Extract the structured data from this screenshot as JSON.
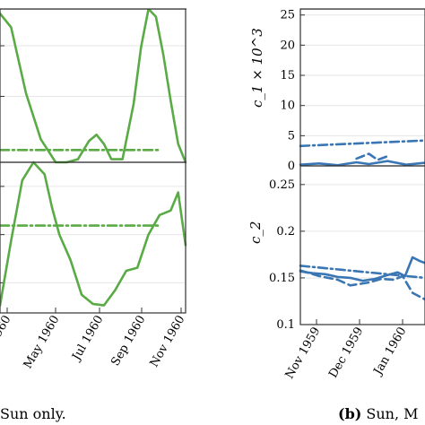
{
  "captions": {
    "left": "Sun only.",
    "right_bold": "(b)",
    "right_text": " Sun, M"
  },
  "chart_data": [
    {
      "panel": "left-top",
      "type": "line",
      "color": "#5aab46",
      "ylim": [
        0,
        1
      ],
      "grid": true,
      "series": [
        {
          "style": "solid",
          "x": [
            0.0,
            0.06,
            0.14,
            0.22,
            0.3,
            0.36,
            0.42,
            0.48,
            0.52,
            0.56,
            0.6,
            0.66,
            0.72,
            0.76,
            0.8,
            0.84,
            0.88,
            0.92,
            0.96,
            1.0
          ],
          "y": [
            0.97,
            0.88,
            0.45,
            0.15,
            0.0,
            0.0,
            0.02,
            0.14,
            0.18,
            0.12,
            0.02,
            0.02,
            0.38,
            0.75,
            1.0,
            0.95,
            0.7,
            0.4,
            0.12,
            0.0
          ]
        },
        {
          "style": "dashdot",
          "x": [
            0.0,
            0.86
          ],
          "y": [
            0.08,
            0.08
          ]
        }
      ]
    },
    {
      "panel": "left-bottom",
      "type": "line",
      "color": "#5aab46",
      "ylim": [
        0,
        1
      ],
      "grid": true,
      "series": [
        {
          "style": "solid",
          "x": [
            0.0,
            0.06,
            0.12,
            0.18,
            0.24,
            0.28,
            0.32,
            0.38,
            0.44,
            0.5,
            0.56,
            0.62,
            0.68,
            0.74,
            0.8,
            0.86,
            0.92,
            0.96,
            1.0
          ],
          "y": [
            0.05,
            0.48,
            0.88,
            1.0,
            0.92,
            0.7,
            0.52,
            0.35,
            0.12,
            0.06,
            0.05,
            0.15,
            0.28,
            0.3,
            0.52,
            0.65,
            0.68,
            0.8,
            0.45
          ]
        },
        {
          "style": "dashdot",
          "x": [
            0.0,
            0.85
          ],
          "y": [
            0.58,
            0.58
          ]
        }
      ]
    },
    {
      "panel": "left-x-axis",
      "type": "line",
      "tick_labels": [
        "960",
        "May 1960",
        "Jul 1960",
        "Sep 1960",
        "Nov 1960"
      ]
    },
    {
      "panel": "right-top",
      "type": "line",
      "color": "#3a76b4",
      "ylabel": "c_1 × 10^3",
      "ylim": [
        0,
        26
      ],
      "yticks": [
        "0",
        "5",
        "10",
        "15",
        "20",
        "25"
      ],
      "grid": true,
      "series": [
        {
          "style": "solid",
          "x": [
            0.0,
            0.15,
            0.3,
            0.45,
            0.55,
            0.7,
            0.85,
            1.0
          ],
          "y": [
            0.2,
            0.4,
            0.1,
            0.6,
            0.3,
            0.8,
            0.2,
            0.5
          ]
        },
        {
          "style": "dashed",
          "x": [
            0.45,
            0.55,
            0.62,
            0.7
          ],
          "y": [
            1.2,
            2.0,
            1.0,
            1.6
          ]
        },
        {
          "style": "dashdot",
          "x": [
            0.0,
            1.0
          ],
          "y": [
            3.3,
            4.2
          ]
        }
      ]
    },
    {
      "panel": "right-bottom",
      "type": "line",
      "color": "#3a76b4",
      "ylabel": "c_2",
      "ylim": [
        0.1,
        0.27
      ],
      "yticks": [
        "0.1",
        "0.15",
        "0.2",
        "0.25"
      ],
      "grid": true,
      "series": [
        {
          "style": "solid",
          "x": [
            0.0,
            0.1,
            0.2,
            0.3,
            0.4,
            0.5,
            0.6,
            0.7,
            0.78,
            0.84,
            0.9,
            0.96,
            1.0
          ],
          "y": [
            0.157,
            0.155,
            0.154,
            0.151,
            0.15,
            0.147,
            0.149,
            0.153,
            0.156,
            0.152,
            0.172,
            0.168,
            0.166
          ]
        },
        {
          "style": "dashed",
          "x": [
            0.0,
            0.15,
            0.3,
            0.4,
            0.55,
            0.65,
            0.75,
            0.82,
            0.9,
            1.0
          ],
          "y": [
            0.158,
            0.152,
            0.148,
            0.142,
            0.145,
            0.149,
            0.148,
            0.152,
            0.134,
            0.127
          ]
        },
        {
          "style": "dashdot",
          "x": [
            0.0,
            1.0
          ],
          "y": [
            0.163,
            0.15
          ]
        }
      ]
    },
    {
      "panel": "right-x-axis",
      "type": "line",
      "tick_labels": [
        "Nov 1959",
        "Dec 1959",
        "Jan 1960"
      ]
    }
  ]
}
